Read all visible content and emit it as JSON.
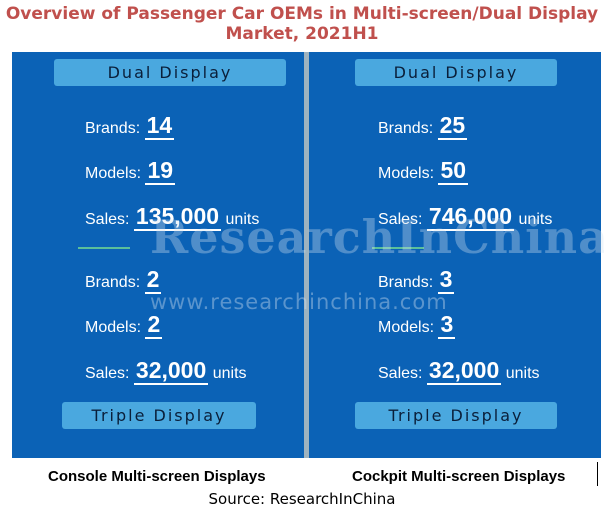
{
  "title": "Overview of Passenger Car OEMs in Multi-screen/Dual Display Market, 2021H1",
  "left_panel": {
    "dual_label": "Dual Display",
    "triple_label": "Triple Display",
    "dual": {
      "brands_label": "Brands:",
      "brands": "14",
      "models_label": "Models:",
      "models": "19",
      "sales_label": "Sales:",
      "sales": "135,000",
      "units": "units"
    },
    "triple": {
      "brands_label": "Brands:",
      "brands": "2",
      "models_label": "Models:",
      "models": "2",
      "sales_label": "Sales:",
      "sales": "32,000",
      "units": "units"
    },
    "caption": "Console Multi-screen Displays"
  },
  "right_panel": {
    "dual_label": "Dual Display",
    "triple_label": "Triple Display",
    "dual": {
      "brands_label": "Brands:",
      "brands": "25",
      "models_label": "Models:",
      "models": "50",
      "sales_label": "Sales:",
      "sales": "746,000",
      "units": "units"
    },
    "triple": {
      "brands_label": "Brands:",
      "brands": "3",
      "models_label": "Models:",
      "models": "3",
      "sales_label": "Sales:",
      "sales": "32,000",
      "units": "units"
    },
    "caption": "Cockpit Multi-screen Displays"
  },
  "watermark": "ResearchInChina",
  "watermark_url": "www.researchinchina.com",
  "source": "Source: ResearchInChina",
  "colors": {
    "title": "#c0504d",
    "panel": "#0b62b6",
    "pill": "#4aa8df",
    "divider": "#9fb3bf"
  }
}
